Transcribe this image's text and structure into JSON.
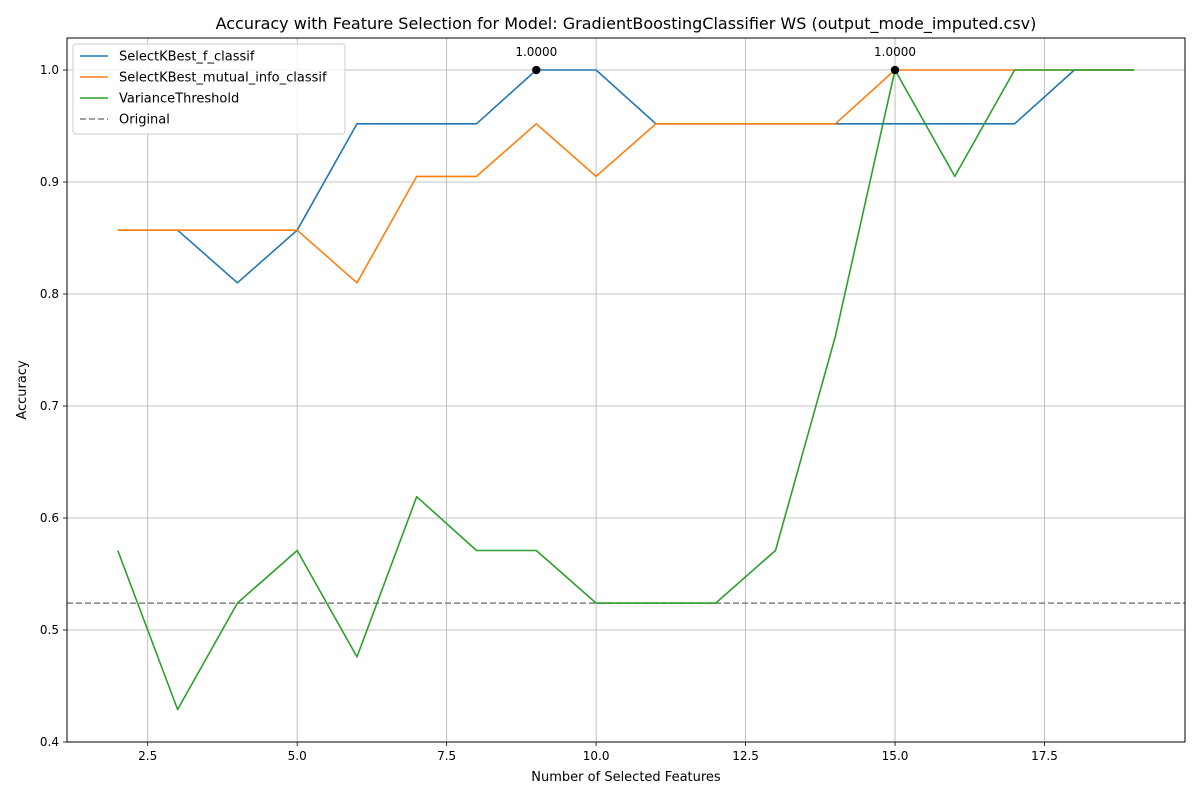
{
  "chart_data": {
    "type": "line",
    "title": "Accuracy with Feature Selection for Model: GradientBoostingClassifier WS (output_mode_imputed.csv)",
    "xlabel": "Number of Selected Features",
    "ylabel": "Accuracy",
    "xlim": [
      1.15,
      19.85
    ],
    "ylim": [
      0.4,
      1.0286
    ],
    "xticks": [
      2.5,
      5.0,
      7.5,
      10.0,
      12.5,
      15.0,
      17.5
    ],
    "xtick_labels": [
      "2.5",
      "5.0",
      "7.5",
      "10.0",
      "12.5",
      "15.0",
      "17.5"
    ],
    "yticks": [
      0.4,
      0.5,
      0.6,
      0.7,
      0.8,
      0.9,
      1.0
    ],
    "ytick_labels": [
      "0.4",
      "0.5",
      "0.6",
      "0.7",
      "0.8",
      "0.9",
      "1.0"
    ],
    "grid": true,
    "legend_position": "top-left",
    "x": [
      2,
      3,
      4,
      5,
      6,
      7,
      8,
      9,
      10,
      11,
      12,
      13,
      14,
      15,
      16,
      17,
      18,
      19
    ],
    "series": [
      {
        "name": "SelectKBest_f_classif",
        "color": "#1f77b4",
        "values": [
          0.857,
          0.857,
          0.81,
          0.857,
          0.952,
          0.952,
          0.952,
          1.0,
          1.0,
          0.952,
          0.952,
          0.952,
          0.952,
          0.952,
          0.952,
          0.952,
          1.0,
          1.0
        ]
      },
      {
        "name": "SelectKBest_mutual_info_classif",
        "color": "#ff7f0e",
        "values": [
          0.857,
          0.857,
          0.857,
          0.857,
          0.81,
          0.905,
          0.905,
          0.952,
          0.905,
          0.952,
          0.952,
          0.952,
          0.952,
          1.0,
          1.0,
          1.0,
          1.0,
          1.0
        ]
      },
      {
        "name": "VarianceThreshold",
        "color": "#2ca02c",
        "values": [
          0.571,
          0.429,
          0.524,
          0.571,
          0.476,
          0.619,
          0.571,
          0.571,
          0.524,
          0.524,
          0.524,
          0.571,
          0.762,
          1.0,
          0.905,
          1.0,
          1.0,
          1.0
        ]
      }
    ],
    "reference_line": {
      "name": "Original",
      "color": "#808080",
      "value": 0.524,
      "style": "dashed"
    },
    "annotations": [
      {
        "x": 9,
        "y": 1.0,
        "text": "1.0000"
      },
      {
        "x": 15,
        "y": 1.0,
        "text": "1.0000"
      }
    ]
  }
}
